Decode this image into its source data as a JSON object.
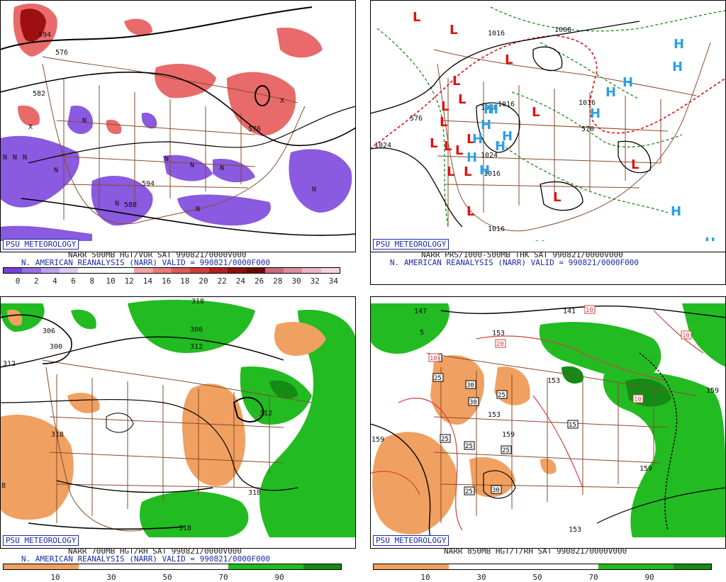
{
  "panels": [
    {
      "id": "tl",
      "badge": "PSU METEOROLOGY",
      "caption1": "NARR 500MB HGT/VOR SAT 990821/0000V000",
      "caption2": "N. AMERICAN REANALYSIS (NARR) VALID = 990821/0000F000",
      "colorbar_ticks": [
        "0",
        "2",
        "4",
        "6",
        "8",
        "10",
        "12",
        "14",
        "16",
        "18",
        "20",
        "22",
        "24",
        "26",
        "28",
        "30",
        "32",
        "34"
      ],
      "colorbar_colors": [
        "#7a3fd6",
        "#9a6ee0",
        "#bca2ec",
        "#d9cbf3",
        "#ffffff",
        "#ffffff",
        "#ffffff",
        "#f3a6a6",
        "#ea7a7a",
        "#e05a5a",
        "#d23c3c",
        "#b81e1e",
        "#8e0e0e",
        "#6b0606",
        "#c86a7a",
        "#dc8ea0",
        "#ecb4c2",
        "#f6d4dc"
      ],
      "contour_labels": [
        "582",
        "576",
        "594",
        "588",
        "576",
        "594"
      ],
      "letters": [
        "X",
        "N",
        "N",
        "N",
        "N",
        "N",
        "N",
        "N",
        "N",
        "N",
        "X",
        "N",
        "N"
      ]
    },
    {
      "id": "tr",
      "badge": "PSU METEOROLOGY",
      "caption1": "NARR PRS/1000-500MB THK SAT 990821/0000V000",
      "caption2": "N. AMERICAN REANALYSIS (NARR) VALID = 990821/0000F000",
      "contour_labels": [
        "1016",
        "1008",
        "1024",
        "1016",
        "1016",
        "1008",
        "1016",
        "1016",
        "1024",
        "570",
        "576"
      ],
      "lows": [
        "L",
        "L",
        "L",
        "L",
        "L",
        "L",
        "L",
        "L",
        "L",
        "L",
        "L",
        "L",
        "L",
        "L",
        "L",
        "L",
        "L"
      ],
      "highs": [
        "H",
        "H",
        "H",
        "H",
        "H",
        "H",
        "H",
        "H",
        "H",
        "H",
        "H",
        "H",
        "H",
        "H",
        "H",
        "H"
      ]
    },
    {
      "id": "bl",
      "badge": "PSU METEOROLOGY",
      "caption1": "NARR 700MB HGT/RH SAT 990821/0000V000",
      "caption2": "N. AMERICAN REANALYSIS (NARR) VALID = 990821/0000F000",
      "colorbar_ticks": [
        "10",
        "30",
        "50",
        "70",
        "90"
      ],
      "colorbar_colors": [
        "#f0a060",
        "#f0a060",
        "#ffffff",
        "#ffffff",
        "#ffffff",
        "#ffffff",
        "#22bb22",
        "#22bb22",
        "#168a16"
      ],
      "contour_labels": [
        "306",
        "300",
        "312",
        "306",
        "312",
        "318",
        "312",
        "318",
        "318",
        "318",
        "8"
      ]
    },
    {
      "id": "br",
      "badge": "PSU METEOROLOGY",
      "caption1": "NARR 850MB HGT/T/RH SAT 990821/0000V000",
      "caption2": "",
      "colorbar_ticks": [
        "10",
        "30",
        "50",
        "70",
        "90"
      ],
      "colorbar_colors": [
        "#f0a060",
        "#f0a060",
        "#ffffff",
        "#ffffff",
        "#ffffff",
        "#ffffff",
        "#22bb22",
        "#22bb22",
        "#168a16"
      ],
      "contour_labels": [
        "147",
        "5",
        "153",
        "159",
        "153",
        "153",
        "159",
        "153",
        "159",
        "159",
        "141"
      ],
      "boxed_labels": [
        "10",
        "20",
        "15",
        "25",
        "30",
        "30",
        "25",
        "15",
        "25",
        "25",
        "25",
        "30",
        "25",
        "10",
        "10",
        "10"
      ]
    }
  ]
}
